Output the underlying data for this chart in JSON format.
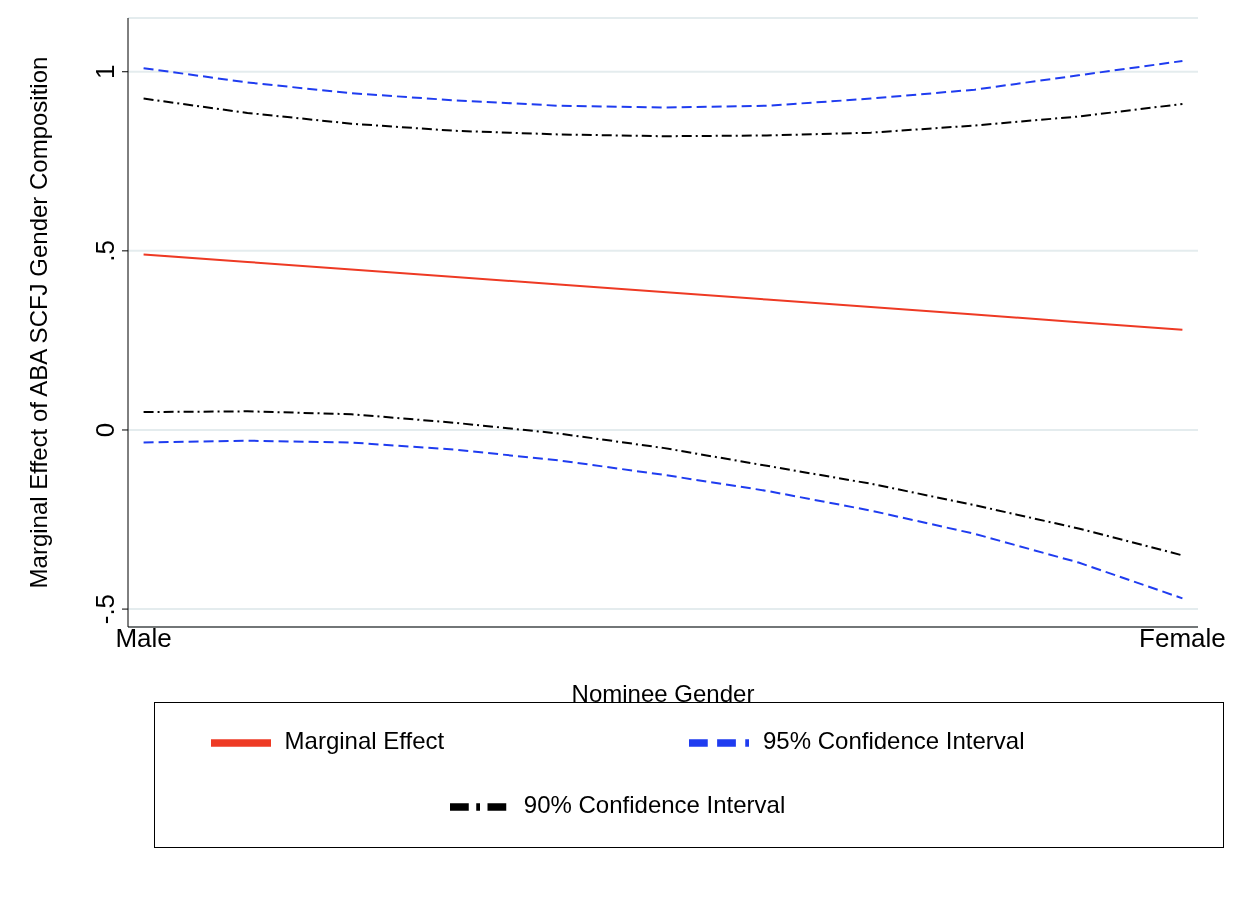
{
  "chart_data": {
    "type": "line",
    "xlabel": "Nominee Gender",
    "ylabel": "Marginal Effect of ABA SCFJ Gender Composition",
    "categories": [
      "Male",
      null,
      null,
      null,
      null,
      null,
      null,
      null,
      null,
      null,
      "Female"
    ],
    "series": [
      {
        "name": "Marginal Effect",
        "color": "#ee3a24",
        "line_style": "solid",
        "values": [
          0.49,
          0.469,
          0.448,
          0.427,
          0.406,
          0.385,
          0.364,
          0.343,
          0.322,
          0.301,
          0.28
        ]
      },
      {
        "name": "95% Confidence Interval",
        "color": "#1f3cf0",
        "line_style": "dashed",
        "values": [
          1.01,
          0.97,
          0.94,
          0.92,
          0.905,
          0.9,
          0.905,
          0.925,
          0.95,
          0.99,
          1.03
        ]
      },
      {
        "color": "#1f3cf0",
        "line_style": "dashed",
        "values": [
          -0.035,
          -0.03,
          -0.035,
          -0.055,
          -0.085,
          -0.125,
          -0.17,
          -0.225,
          -0.29,
          -0.37,
          -0.47
        ]
      },
      {
        "name": "90% Confidence Interval",
        "color": "#000000",
        "line_style": "dashdot",
        "values": [
          0.925,
          0.885,
          0.855,
          0.835,
          0.825,
          0.82,
          0.822,
          0.83,
          0.85,
          0.875,
          0.91
        ]
      },
      {
        "color": "#000000",
        "line_style": "dashdot",
        "values": [
          0.05,
          0.052,
          0.044,
          0.02,
          -0.01,
          -0.05,
          -0.1,
          -0.15,
          -0.21,
          -0.275,
          -0.35
        ]
      }
    ],
    "ylim": [
      -0.55,
      1.15
    ],
    "yticks": [
      {
        "value": -0.5,
        "label": "-.5"
      },
      {
        "value": 0,
        "label": "0"
      },
      {
        "value": 0.5,
        "label": ".5"
      },
      {
        "value": 1,
        "label": "1"
      }
    ],
    "grid": "y",
    "legend": "bottom",
    "marker": "none"
  }
}
